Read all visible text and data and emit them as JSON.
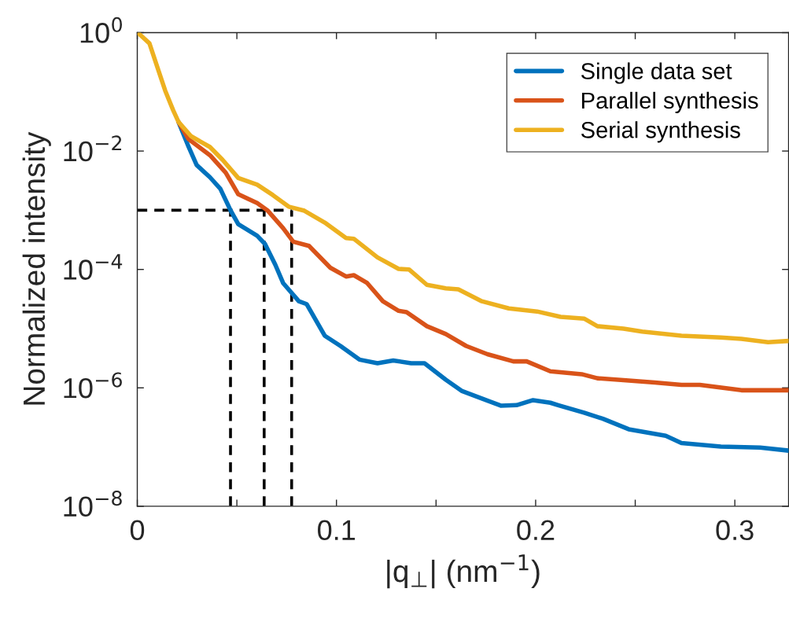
{
  "chart_data": {
    "type": "line",
    "xlabel": "|q$_{⊥}$| (nm$^{−1}$)",
    "ylabel": "Normalized intensity",
    "log": "y",
    "grid": false,
    "legend": "top right",
    "xlim": [
      0,
      0.327
    ],
    "xticks": [
      0,
      {
        "value": 0.05,
        "label": null
      },
      0.1,
      {
        "value": 0.15,
        "label": null
      },
      0.2,
      {
        "value": 0.25,
        "label": null
      },
      0.3
    ],
    "ylim": [
      1e-08,
      1
    ],
    "yticks": [
      {
        "value": 1e-08,
        "label": "10$^{−8}$"
      },
      {
        "value": 1e-06,
        "label": "10$^{−6}$"
      },
      {
        "value": 0.0001,
        "label": "10$^{−4}$"
      },
      {
        "value": 0.01,
        "label": "10$^{−2}$"
      },
      {
        "value": 1,
        "label": "10$^{0}$"
      }
    ],
    "series": [
      {
        "name": "Single data set",
        "color": "#0072bd",
        "x": [
          0.0207,
          0.0258,
          0.0298,
          0.0365,
          0.0417,
          0.0468,
          0.0507,
          0.0602,
          0.0641,
          0.0693,
          0.0732,
          0.0811,
          0.085,
          0.0941,
          0.102,
          0.1115,
          0.1206,
          0.1285,
          0.1375,
          0.1442,
          0.1549,
          0.1628,
          0.173,
          0.1825,
          0.1904,
          0.1987,
          0.2074,
          0.2113,
          0.2243,
          0.2338,
          0.2467,
          0.2653,
          0.2732,
          0.293,
          0.3127,
          0.327
        ],
        "values": [
          0.031,
          0.0117,
          0.0058,
          0.0036,
          0.0023,
          0.001,
          0.00058,
          0.00037,
          0.00027,
          0.00012,
          5.9e-05,
          2.9e-05,
          2.6e-05,
          7.6e-06,
          5.1e-06,
          3e-06,
          2.6e-06,
          2.9e-06,
          2.6e-06,
          2.6e-06,
          1.37e-06,
          8.9e-07,
          6.6e-07,
          5e-07,
          5.1e-07,
          6.2e-07,
          5.6e-07,
          5.1e-07,
          3.8e-07,
          3e-07,
          2e-07,
          1.55e-07,
          1.17e-07,
          1.02e-07,
          9.8e-08,
          8.7e-08
        ]
      },
      {
        "name": "Parallel synthesis",
        "color": "#d95319",
        "x": [
          0.0207,
          0.0258,
          0.0365,
          0.0444,
          0.0507,
          0.0602,
          0.0653,
          0.0732,
          0.0783,
          0.0862,
          0.0969,
          0.1048,
          0.1087,
          0.1154,
          0.1233,
          0.1312,
          0.1352,
          0.1454,
          0.1549,
          0.1651,
          0.1758,
          0.1888,
          0.1955,
          0.2074,
          0.2231,
          0.231,
          0.2441,
          0.2598,
          0.2732,
          0.2824,
          0.3033,
          0.327
        ],
        "values": [
          0.031,
          0.0158,
          0.0085,
          0.0043,
          0.00186,
          0.00132,
          0.001,
          0.0005,
          0.000295,
          0.00025,
          0.000107,
          7.6e-05,
          8e-05,
          5.9e-05,
          2.9e-05,
          2e-05,
          1.9e-05,
          1.1e-05,
          8.1e-06,
          5.1e-06,
          3.7e-06,
          2.8e-06,
          2.8e-06,
          1.9e-06,
          1.7e-06,
          1.45e-06,
          1.35e-06,
          1.23e-06,
          1.12e-06,
          1.12e-06,
          9.1e-07,
          9.1e-07
        ]
      },
      {
        "name": "Serial synthesis",
        "color": "#edb120",
        "x": [
          0.001,
          0.0061,
          0.0101,
          0.014,
          0.018,
          0.0207,
          0.027,
          0.0365,
          0.0428,
          0.0507,
          0.0602,
          0.0681,
          0.076,
          0.0839,
          0.0941,
          0.1048,
          0.1087,
          0.1206,
          0.1312,
          0.1364,
          0.1454,
          0.1549,
          0.1612,
          0.173,
          0.1865,
          0.2007,
          0.2125,
          0.2243,
          0.231,
          0.2441,
          0.2535,
          0.2732,
          0.293,
          0.3033,
          0.3167,
          0.327
        ],
        "values": [
          0.95,
          0.66,
          0.26,
          0.105,
          0.049,
          0.031,
          0.0178,
          0.0117,
          0.0071,
          0.0035,
          0.0027,
          0.0018,
          0.00115,
          0.00098,
          0.00062,
          0.00034,
          0.00033,
          0.00016,
          0.000102,
          0.0001,
          5.5e-05,
          4.8e-05,
          4.6e-05,
          2.9e-05,
          2.2e-05,
          1.95e-05,
          1.58e-05,
          1.48e-05,
          1.1e-05,
          1e-05,
          8.9e-06,
          7.6e-06,
          7.1e-06,
          6.7e-06,
          5.9e-06,
          6.2e-06
        ]
      },
      {
        "color": "#000000",
        "line_style": "dashed",
        "x": [
          0,
          0.0775
        ],
        "values": [
          0.001,
          0.001
        ]
      },
      {
        "color": "#000000",
        "line_style": "dashed",
        "x": [
          0.0468,
          0.0468
        ],
        "values": [
          1e-08,
          0.001
        ]
      },
      {
        "color": "#000000",
        "line_style": "dashed",
        "x": [
          0.0637,
          0.0637
        ],
        "values": [
          1e-08,
          0.001
        ]
      },
      {
        "color": "#000000",
        "line_style": "dashed",
        "x": [
          0.0775,
          0.0775
        ],
        "values": [
          1e-08,
          0.001
        ]
      }
    ]
  }
}
